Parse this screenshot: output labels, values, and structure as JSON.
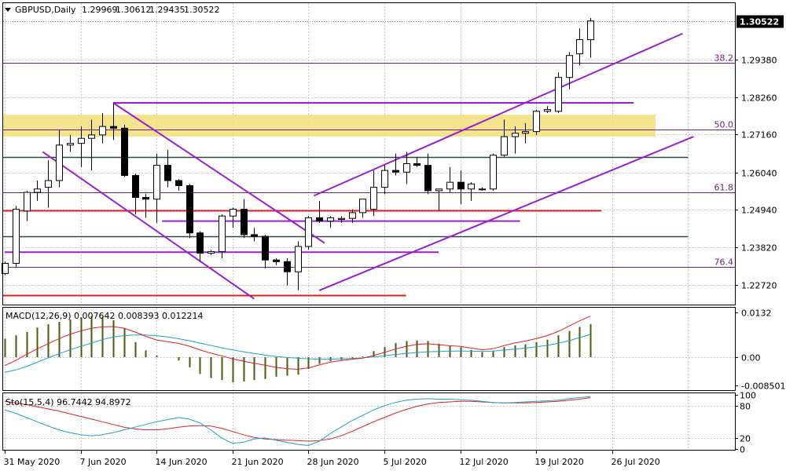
{
  "header": {
    "symbol": "GBPUSD,Daily",
    "open": "1.29969",
    "high": "1.30612",
    "low": "1.29435",
    "close": "1.30522"
  },
  "colors": {
    "grid": "#c8c8c8",
    "border": "#000000",
    "bull_body": "#ffffff",
    "bear_body": "#000000",
    "candle_outline": "#000000",
    "channel": "#9a1fd1",
    "fib": "#6a1f80",
    "support_red": "#e02020",
    "dark_level": "#2a4a40",
    "zone": "#f2df7a",
    "macd_hist": "#4a5a10",
    "macd_line": "#e02020",
    "macd_signal": "#1aa3c8",
    "sto_main": "#1aa3c8",
    "sto_signal": "#e02020"
  },
  "chart_data": [
    {
      "type": "candlestick",
      "title": "GBPUSD,Daily",
      "ylim": [
        1.2213,
        1.3105
      ],
      "yticks": [
        "1.29380",
        "1.28260",
        "1.27160",
        "1.26040",
        "1.24940",
        "1.23820",
        "1.22720"
      ],
      "ytick_values": [
        1.2938,
        1.2826,
        1.2716,
        1.2604,
        1.2494,
        1.2382,
        1.2272
      ],
      "last_price_label": "1.30522",
      "last_price": 1.30522,
      "x_labels": [
        "31 May 2020",
        "7 Jun 2020",
        "14 Jun 2020",
        "21 Jun 2020",
        "28 Jun 2020",
        "5 Jul 2020",
        "12 Jul 2020",
        "19 Jul 2020",
        "26 Jul 2020"
      ],
      "x_label_index": [
        0,
        7,
        14,
        21,
        28,
        35,
        42,
        49,
        56
      ],
      "candles": [
        {
          "o": 1.2305,
          "h": 1.234,
          "l": 1.23,
          "c": 1.2335
        },
        {
          "o": 1.2335,
          "h": 1.2505,
          "l": 1.2325,
          "c": 1.2495
        },
        {
          "o": 1.249,
          "h": 1.255,
          "l": 1.246,
          "c": 1.2545
        },
        {
          "o": 1.2545,
          "h": 1.258,
          "l": 1.252,
          "c": 1.2555
        },
        {
          "o": 1.256,
          "h": 1.264,
          "l": 1.25,
          "c": 1.258
        },
        {
          "o": 1.258,
          "h": 1.273,
          "l": 1.256,
          "c": 1.2685
        },
        {
          "o": 1.2685,
          "h": 1.2715,
          "l": 1.2665,
          "c": 1.269
        },
        {
          "o": 1.269,
          "h": 1.274,
          "l": 1.262,
          "c": 1.2705
        },
        {
          "o": 1.2705,
          "h": 1.276,
          "l": 1.261,
          "c": 1.2715
        },
        {
          "o": 1.2715,
          "h": 1.278,
          "l": 1.269,
          "c": 1.274
        },
        {
          "o": 1.274,
          "h": 1.281,
          "l": 1.27,
          "c": 1.2735
        },
        {
          "o": 1.2735,
          "h": 1.2745,
          "l": 1.259,
          "c": 1.2595
        },
        {
          "o": 1.2595,
          "h": 1.26,
          "l": 1.248,
          "c": 1.253
        },
        {
          "o": 1.253,
          "h": 1.254,
          "l": 1.247,
          "c": 1.2525
        },
        {
          "o": 1.2525,
          "h": 1.266,
          "l": 1.2455,
          "c": 1.2625
        },
        {
          "o": 1.2625,
          "h": 1.267,
          "l": 1.256,
          "c": 1.258
        },
        {
          "o": 1.258,
          "h": 1.2585,
          "l": 1.255,
          "c": 1.2565
        },
        {
          "o": 1.2565,
          "h": 1.257,
          "l": 1.241,
          "c": 1.2425
        },
        {
          "o": 1.2425,
          "h": 1.243,
          "l": 1.234,
          "c": 1.2365
        },
        {
          "o": 1.2365,
          "h": 1.2375,
          "l": 1.236,
          "c": 1.237
        },
        {
          "o": 1.237,
          "h": 1.248,
          "l": 1.235,
          "c": 1.2475
        },
        {
          "o": 1.2475,
          "h": 1.25,
          "l": 1.244,
          "c": 1.2495
        },
        {
          "o": 1.2495,
          "h": 1.2525,
          "l": 1.241,
          "c": 1.242
        },
        {
          "o": 1.242,
          "h": 1.244,
          "l": 1.24,
          "c": 1.2415
        },
        {
          "o": 1.2415,
          "h": 1.242,
          "l": 1.232,
          "c": 1.2345
        },
        {
          "o": 1.2345,
          "h": 1.235,
          "l": 1.233,
          "c": 1.234
        },
        {
          "o": 1.234,
          "h": 1.235,
          "l": 1.227,
          "c": 1.231
        },
        {
          "o": 1.231,
          "h": 1.24,
          "l": 1.2255,
          "c": 1.2385
        },
        {
          "o": 1.2385,
          "h": 1.2475,
          "l": 1.2375,
          "c": 1.247
        },
        {
          "o": 1.247,
          "h": 1.252,
          "l": 1.2455,
          "c": 1.246
        },
        {
          "o": 1.246,
          "h": 1.2475,
          "l": 1.244,
          "c": 1.247
        },
        {
          "o": 1.2465,
          "h": 1.2475,
          "l": 1.2455,
          "c": 1.2468
        },
        {
          "o": 1.2468,
          "h": 1.2495,
          "l": 1.2455,
          "c": 1.2485
        },
        {
          "o": 1.2485,
          "h": 1.252,
          "l": 1.247,
          "c": 1.2525
        },
        {
          "o": 1.2495,
          "h": 1.261,
          "l": 1.2475,
          "c": 1.256
        },
        {
          "o": 1.256,
          "h": 1.2625,
          "l": 1.254,
          "c": 1.261
        },
        {
          "o": 1.261,
          "h": 1.266,
          "l": 1.2595,
          "c": 1.2605
        },
        {
          "o": 1.2605,
          "h": 1.2665,
          "l": 1.257,
          "c": 1.263
        },
        {
          "o": 1.263,
          "h": 1.265,
          "l": 1.262,
          "c": 1.2625
        },
        {
          "o": 1.2625,
          "h": 1.266,
          "l": 1.254,
          "c": 1.255
        },
        {
          "o": 1.255,
          "h": 1.2555,
          "l": 1.249,
          "c": 1.2555
        },
        {
          "o": 1.2555,
          "h": 1.262,
          "l": 1.2545,
          "c": 1.2575
        },
        {
          "o": 1.2575,
          "h": 1.261,
          "l": 1.251,
          "c": 1.2555
        },
        {
          "o": 1.2555,
          "h": 1.2575,
          "l": 1.252,
          "c": 1.257
        },
        {
          "o": 1.2555,
          "h": 1.256,
          "l": 1.255,
          "c": 1.2555
        },
        {
          "o": 1.2555,
          "h": 1.266,
          "l": 1.255,
          "c": 1.2655
        },
        {
          "o": 1.2655,
          "h": 1.276,
          "l": 1.265,
          "c": 1.271
        },
        {
          "o": 1.271,
          "h": 1.274,
          "l": 1.266,
          "c": 1.272
        },
        {
          "o": 1.272,
          "h": 1.275,
          "l": 1.269,
          "c": 1.2725
        },
        {
          "o": 1.2725,
          "h": 1.279,
          "l": 1.2715,
          "c": 1.2785
        },
        {
          "o": 1.2785,
          "h": 1.28,
          "l": 1.278,
          "c": 1.279
        },
        {
          "o": 1.2785,
          "h": 1.29,
          "l": 1.278,
          "c": 1.2885
        },
        {
          "o": 1.2885,
          "h": 1.296,
          "l": 1.285,
          "c": 1.295
        },
        {
          "o": 1.2955,
          "h": 1.303,
          "l": 1.292,
          "c": 1.2997
        },
        {
          "o": 1.29969,
          "h": 1.30612,
          "l": 1.29435,
          "c": 1.30522
        }
      ],
      "fib_levels": [
        {
          "label": "38.2",
          "price": 1.2928
        },
        {
          "label": "50.0",
          "price": 1.273
        },
        {
          "label": "61.8",
          "price": 1.2545
        },
        {
          "label": "76.4",
          "price": 1.2325
        }
      ],
      "horizontal_levels": [
        {
          "kind": "dark",
          "price": 1.265
        },
        {
          "kind": "dark",
          "price": 1.2415
        },
        {
          "kind": "red",
          "price": 1.2492
        },
        {
          "kind": "red",
          "price": 1.224
        }
      ],
      "zone": {
        "from": 1.271,
        "to": 1.2775
      },
      "trend_lines": [
        {
          "name": "upper-channel",
          "x1": 28.5,
          "y1": 1.2535,
          "x2": 62.5,
          "y2": 1.3015
        },
        {
          "name": "lower-channel",
          "x1": 29.0,
          "y1": 1.2255,
          "x2": 63.5,
          "y2": 1.271
        },
        {
          "name": "down-channel-top",
          "x1": 10.0,
          "y1": 1.281,
          "x2": 29.5,
          "y2": 1.2395
        },
        {
          "name": "down-channel-bottom",
          "x1": 3.5,
          "y1": 1.2665,
          "x2": 23.0,
          "y2": 1.223
        },
        {
          "name": "horizontal-top",
          "x1": 10.0,
          "y1": 1.281,
          "x2": 58.0,
          "y2": 1.281
        },
        {
          "name": "horizontal-mid",
          "x1": 14.5,
          "y1": 1.246,
          "x2": 47.5,
          "y2": 1.246
        },
        {
          "name": "horizontal-low",
          "x1": 0.0,
          "y1": 1.2368,
          "x2": 40.0,
          "y2": 1.2368
        }
      ]
    },
    {
      "type": "macd",
      "label": "MACD(12,26,9) 0.007642 0.008393 0.012214",
      "ylim": [
        -0.0098,
        0.0147
      ],
      "yticks": [
        "0.0132",
        "0.00",
        "-0.008501"
      ],
      "ytick_values": [
        0.0132,
        0.0,
        -0.008501
      ],
      "histogram": [
        0.0055,
        0.0065,
        0.0075,
        0.0088,
        0.0098,
        0.0105,
        0.0112,
        0.0118,
        0.0122,
        0.012,
        0.011,
        0.0085,
        0.0045,
        0.002,
        0.0005,
        0.0,
        -0.001,
        -0.003,
        -0.005,
        -0.0062,
        -0.0068,
        -0.0075,
        -0.0072,
        -0.0068,
        -0.0065,
        -0.0058,
        -0.0055,
        -0.0052,
        -0.0035,
        -0.002,
        -0.0012,
        -0.0008,
        -0.0005,
        0.0002,
        0.0018,
        0.003,
        0.0042,
        0.0048,
        0.005,
        0.0048,
        0.004,
        0.0035,
        0.003,
        0.0022,
        0.0015,
        0.0018,
        0.003,
        0.0035,
        0.0038,
        0.0045,
        0.0052,
        0.0065,
        0.0078,
        0.009,
        0.0098
      ],
      "signal": [
        -0.0045,
        -0.0038,
        -0.0028,
        -0.0015,
        -0.0002,
        0.001,
        0.0022,
        0.0032,
        0.0042,
        0.0052,
        0.006,
        0.0064,
        0.0066,
        0.0066,
        0.0064,
        0.006,
        0.0055,
        0.0049,
        0.0042,
        0.0035,
        0.0028,
        0.0022,
        0.0016,
        0.0011,
        0.0006,
        0.0002,
        -0.0001,
        -0.0003,
        -0.0005,
        -0.0006,
        -0.0006,
        -0.0005,
        -0.0004,
        -0.0002,
        0.0001,
        0.0004,
        0.0008,
        0.0011,
        0.0014,
        0.0016,
        0.0017,
        0.0018,
        0.0018,
        0.0018,
        0.0017,
        0.0018,
        0.0021,
        0.0024,
        0.0027,
        0.0031,
        0.0035,
        0.0041,
        0.0049,
        0.0058,
        0.0068
      ],
      "macd": [
        -0.0025,
        -0.001,
        0.0008,
        0.0025,
        0.004,
        0.0055,
        0.0068,
        0.0078,
        0.0086,
        0.009,
        0.0091,
        0.0086,
        0.0075,
        0.0062,
        0.0051,
        0.0046,
        0.0041,
        0.0033,
        0.0022,
        0.0012,
        0.0004,
        -0.0005,
        -0.0012,
        -0.0018,
        -0.0024,
        -0.003,
        -0.0034,
        -0.0036,
        -0.0032,
        -0.0023,
        -0.0015,
        -0.001,
        -0.0006,
        -0.0003,
        0.0005,
        0.0014,
        0.0024,
        0.0032,
        0.0038,
        0.004,
        0.0037,
        0.0034,
        0.0032,
        0.0027,
        0.0022,
        0.0025,
        0.0034,
        0.0042,
        0.0048,
        0.0055,
        0.0064,
        0.0076,
        0.0092,
        0.0108,
        0.0122
      ]
    },
    {
      "type": "stochastic",
      "label": "Sto(15,5,4) 96.7442 94.8972",
      "ylim": [
        -2,
        103
      ],
      "yticks": [
        "100",
        "80",
        "20",
        "0"
      ],
      "ytick_values": [
        100,
        80,
        20,
        0
      ],
      "main": [
        72,
        66,
        58,
        50,
        42,
        35,
        30,
        26,
        24,
        26,
        30,
        35,
        40,
        45,
        50,
        54,
        58,
        55,
        48,
        35,
        20,
        10,
        12,
        18,
        20,
        16,
        12,
        8,
        6,
        14,
        28,
        40,
        52,
        62,
        72,
        80,
        86,
        90,
        92,
        93,
        92,
        92,
        91,
        90,
        88,
        86,
        85,
        86,
        87,
        88,
        89,
        90,
        93,
        95,
        96.7442
      ],
      "signal": [
        88,
        85,
        82,
        78,
        74,
        70,
        65,
        60,
        55,
        50,
        45,
        40,
        37,
        35,
        35,
        37,
        40,
        42,
        43,
        42,
        38,
        32,
        26,
        21,
        18,
        17,
        16,
        15,
        14,
        15,
        18,
        24,
        32,
        41,
        50,
        58,
        66,
        73,
        79,
        83,
        86,
        87,
        88,
        88,
        87,
        86,
        85,
        85,
        85,
        86,
        87,
        88,
        90,
        92,
        94.8972
      ]
    }
  ]
}
